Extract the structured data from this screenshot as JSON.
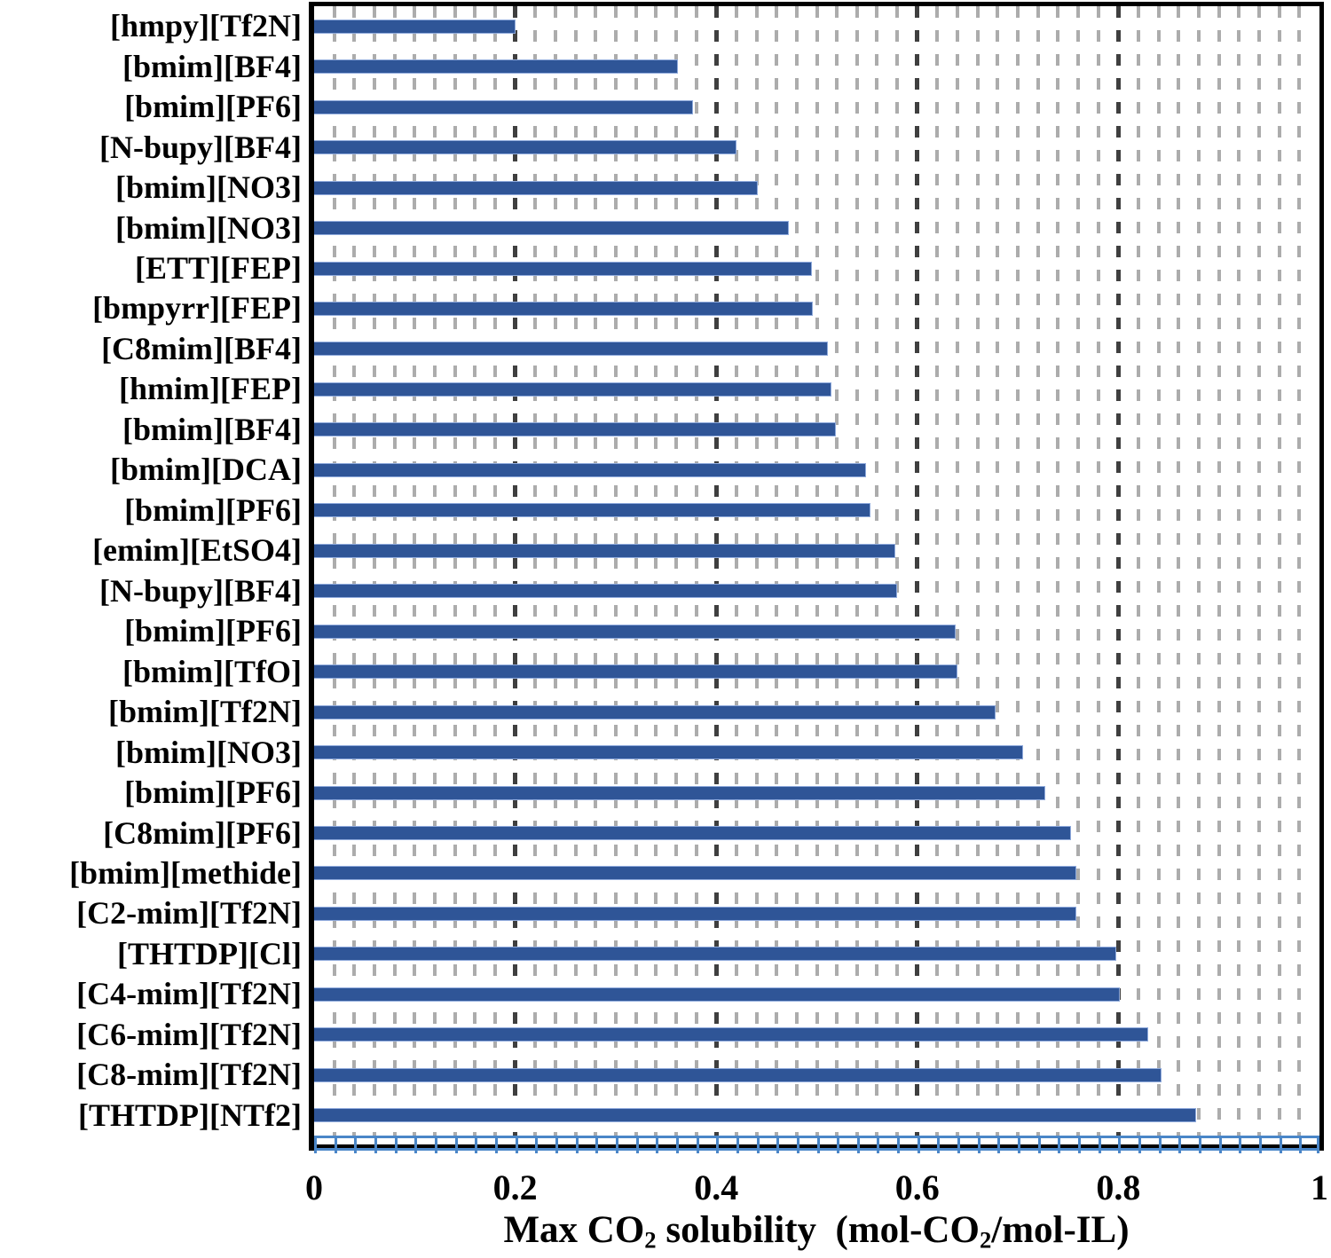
{
  "chart_data": {
    "type": "bar",
    "orientation": "horizontal",
    "title": "",
    "xlabel_plain": "Max CO2 solubility  (mol-CO2/mol-IL)",
    "xlabel_parts": [
      "Max CO",
      "2",
      " solubility  (mol-CO",
      "2",
      "/mol-IL)"
    ],
    "ylabel": "",
    "categories": [
      "[hmpy][Tf2N]",
      "[bmim][BF4]",
      "[bmim][PF6]",
      "[N-bupy][BF4]",
      "[bmim][NO3]",
      "[bmim][NO3]",
      "[ETT][FEP]",
      "[bmpyrr][FEP]",
      "[C8mim][BF4]",
      "[hmim][FEP]",
      "[bmim][BF4]",
      "[bmim][DCA]",
      "[bmim][PF6]",
      "[emim][EtSO4]",
      "[N-bupy][BF4]",
      "[bmim][PF6]",
      "[bmim][TfO]",
      "[bmim][Tf2N]",
      "[bmim][NO3]",
      "[bmim][PF6]",
      "[C8mim][PF6]",
      "[bmim][methide]",
      "[C2-mim][Tf2N]",
      "[THTDP][Cl]",
      "[C4-mim][Tf2N]",
      "[C6-mim][Tf2N]",
      "[C8-mim][Tf2N]",
      "[THTDP][NTf2]"
    ],
    "values": [
      0.2,
      0.362,
      0.377,
      0.42,
      0.441,
      0.472,
      0.495,
      0.496,
      0.511,
      0.515,
      0.519,
      0.549,
      0.553,
      0.578,
      0.58,
      0.638,
      0.64,
      0.678,
      0.705,
      0.727,
      0.753,
      0.758,
      0.758,
      0.798,
      0.801,
      0.83,
      0.843,
      0.877
    ],
    "xlim": [
      0,
      1
    ],
    "x_major_ticks": [
      0,
      0.2,
      0.4,
      0.6,
      0.8,
      1
    ],
    "x_tick_labels": [
      "0",
      "0.2",
      "0.4",
      "0.6",
      "0.8",
      "1"
    ],
    "minor_grid_step": 0.02,
    "major_grid_step": 0.2,
    "grid": "vertical-dashed",
    "legend": "none",
    "colors": {
      "bar": "#2F5597",
      "bar_edge": "#8FAADC",
      "minor_grid": "#ACACAC",
      "major_grid": "#3F3F3F",
      "frame": "#000000",
      "axis_tick": "#4A86C8",
      "text": "#000000",
      "background": "#FFFFFF"
    }
  }
}
